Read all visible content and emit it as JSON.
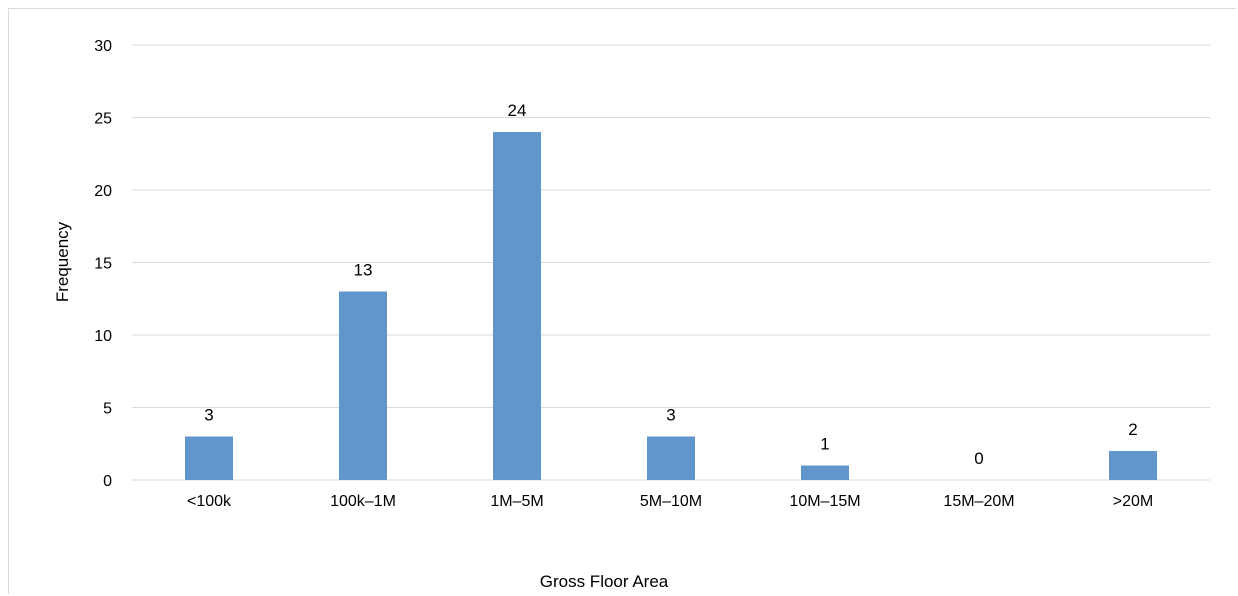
{
  "chart_data": {
    "type": "bar",
    "title": "",
    "xlabel": "Gross Floor Area",
    "ylabel": "Frequency",
    "categories": [
      "<100k",
      "100k–1M",
      "1M–5M",
      "5M–10M",
      "10M–15M",
      "15M–20M",
      ">20M"
    ],
    "values": [
      3,
      13,
      24,
      3,
      1,
      0,
      2
    ],
    "ylim": [
      0,
      30
    ],
    "yticks": [
      0,
      5,
      10,
      15,
      20,
      25,
      30
    ],
    "grid": true,
    "legend": "none",
    "data_labels": true,
    "bar_color": "#6096cb",
    "grid_color": "#d9d9d9"
  }
}
